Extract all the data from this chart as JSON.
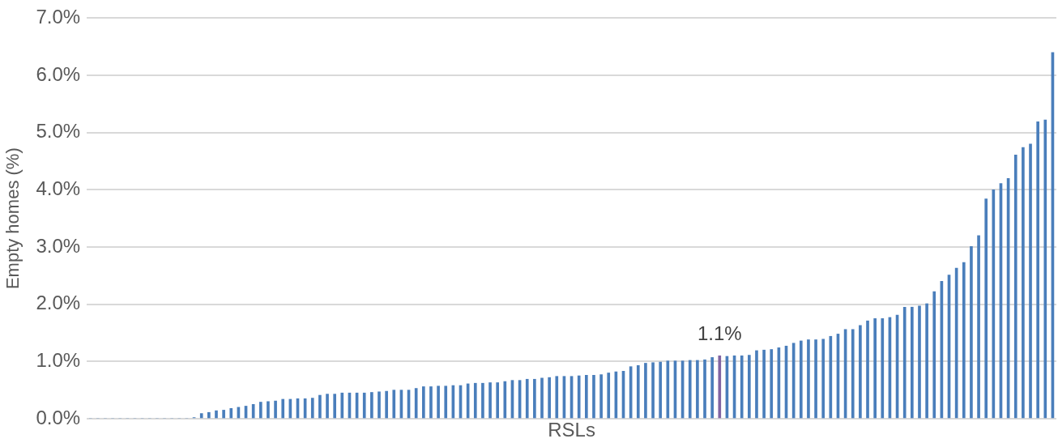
{
  "chart_data": {
    "type": "bar",
    "xlabel": "RSLs",
    "ylabel": "Empty homes (%)",
    "categories": [
      null,
      null,
      null,
      null,
      null,
      null,
      null,
      null,
      null,
      null,
      null,
      null,
      null,
      null,
      null,
      null,
      null,
      null,
      null,
      null,
      null,
      null,
      null,
      null,
      null,
      null,
      null,
      null,
      null,
      null,
      null,
      null,
      null,
      null,
      null,
      null,
      null,
      null,
      null,
      null,
      null,
      null,
      null,
      null,
      null,
      null,
      null,
      null,
      null,
      null,
      null,
      null,
      null,
      null,
      null,
      null,
      null,
      null,
      null,
      null,
      null,
      null,
      null,
      null,
      null,
      null,
      null,
      null,
      null,
      null,
      null,
      null,
      null,
      null,
      null,
      null,
      null,
      null,
      null,
      null,
      null,
      null,
      null,
      null,
      null,
      null,
      null,
      null,
      null,
      null,
      null,
      null,
      null,
      null,
      null,
      null,
      null,
      null,
      null,
      null,
      null,
      null,
      null,
      null,
      null,
      null,
      null,
      null,
      null,
      null,
      null,
      null,
      null,
      null,
      null,
      null,
      null,
      null,
      null,
      null,
      null,
      null,
      null,
      null,
      null,
      null,
      null,
      null,
      null,
      null,
      null
    ],
    "values": [
      0,
      0,
      0,
      0,
      0,
      0,
      0,
      0,
      0,
      0,
      0,
      0,
      0,
      0,
      0.02,
      0.09,
      0.11,
      0.14,
      0.15,
      0.18,
      0.2,
      0.22,
      0.25,
      0.29,
      0.3,
      0.31,
      0.34,
      0.34,
      0.35,
      0.35,
      0.36,
      0.41,
      0.43,
      0.43,
      0.45,
      0.45,
      0.45,
      0.45,
      0.46,
      0.47,
      0.48,
      0.5,
      0.5,
      0.5,
      0.53,
      0.56,
      0.56,
      0.57,
      0.57,
      0.58,
      0.58,
      0.61,
      0.62,
      0.62,
      0.63,
      0.63,
      0.65,
      0.67,
      0.67,
      0.69,
      0.69,
      0.71,
      0.72,
      0.74,
      0.74,
      0.74,
      0.75,
      0.76,
      0.76,
      0.77,
      0.8,
      0.82,
      0.83,
      0.91,
      0.93,
      0.97,
      0.98,
      0.99,
      1.01,
      1.01,
      1.01,
      1.02,
      1.02,
      1.03,
      1.07,
      1.1,
      1.09,
      1.1,
      1.1,
      1.11,
      1.19,
      1.2,
      1.21,
      1.24,
      1.27,
      1.32,
      1.36,
      1.38,
      1.38,
      1.39,
      1.44,
      1.48,
      1.56,
      1.56,
      1.63,
      1.71,
      1.75,
      1.75,
      1.77,
      1.81,
      1.95,
      1.95,
      1.97,
      2.01,
      2.22,
      2.4,
      2.51,
      2.63,
      2.73,
      3.01,
      3.2,
      3.84,
      4.0,
      4.11,
      4.2,
      4.61,
      4.74,
      4.8,
      5.19,
      5.22,
      6.4
    ],
    "colors": [
      "#4a7ebb",
      "#4a7ebb",
      "#4a7ebb",
      "#4a7ebb",
      "#4a7ebb",
      "#4a7ebb",
      "#4a7ebb",
      "#4a7ebb",
      "#4a7ebb",
      "#4a7ebb",
      "#4a7ebb",
      "#4a7ebb",
      "#4a7ebb",
      "#4a7ebb",
      "#4a7ebb",
      "#4a7ebb",
      "#4a7ebb",
      "#4a7ebb",
      "#4a7ebb",
      "#4a7ebb",
      "#4a7ebb",
      "#4a7ebb",
      "#4a7ebb",
      "#4a7ebb",
      "#4a7ebb",
      "#4a7ebb",
      "#4a7ebb",
      "#4a7ebb",
      "#4a7ebb",
      "#4a7ebb",
      "#4a7ebb",
      "#4a7ebb",
      "#4a7ebb",
      "#4a7ebb",
      "#4a7ebb",
      "#4a7ebb",
      "#4a7ebb",
      "#4a7ebb",
      "#4a7ebb",
      "#4a7ebb",
      "#4a7ebb",
      "#4a7ebb",
      "#4a7ebb",
      "#4a7ebb",
      "#4a7ebb",
      "#4a7ebb",
      "#4a7ebb",
      "#4a7ebb",
      "#4a7ebb",
      "#4a7ebb",
      "#4a7ebb",
      "#4a7ebb",
      "#4a7ebb",
      "#4a7ebb",
      "#4a7ebb",
      "#4a7ebb",
      "#4a7ebb",
      "#4a7ebb",
      "#4a7ebb",
      "#4a7ebb",
      "#4a7ebb",
      "#4a7ebb",
      "#4a7ebb",
      "#4a7ebb",
      "#4a7ebb",
      "#4a7ebb",
      "#4a7ebb",
      "#4a7ebb",
      "#4a7ebb",
      "#4a7ebb",
      "#4a7ebb",
      "#4a7ebb",
      "#4a7ebb",
      "#4a7ebb",
      "#4a7ebb",
      "#4a7ebb",
      "#4a7ebb",
      "#4a7ebb",
      "#4a7ebb",
      "#4a7ebb",
      "#4a7ebb",
      "#4a7ebb",
      "#4a7ebb",
      "#4a7ebb",
      "#4a7ebb",
      "#8064a2",
      "#4a7ebb",
      "#4a7ebb",
      "#4a7ebb",
      "#4a7ebb",
      "#4a7ebb",
      "#4a7ebb",
      "#4a7ebb",
      "#4a7ebb",
      "#4a7ebb",
      "#4a7ebb",
      "#4a7ebb",
      "#4a7ebb",
      "#4a7ebb",
      "#4a7ebb",
      "#4a7ebb",
      "#4a7ebb",
      "#4a7ebb",
      "#4a7ebb",
      "#4a7ebb",
      "#4a7ebb",
      "#4a7ebb",
      "#4a7ebb",
      "#4a7ebb",
      "#4a7ebb",
      "#4a7ebb",
      "#4a7ebb",
      "#4a7ebb",
      "#4a7ebb",
      "#4a7ebb",
      "#4a7ebb",
      "#4a7ebb",
      "#4a7ebb",
      "#4a7ebb",
      "#4a7ebb",
      "#4a7ebb",
      "#4a7ebb",
      "#4a7ebb",
      "#4a7ebb",
      "#4a7ebb",
      "#4a7ebb",
      "#4a7ebb",
      "#4a7ebb",
      "#4a7ebb",
      "#4a7ebb",
      "#4a7ebb"
    ],
    "value_labels": [
      null,
      null,
      null,
      null,
      null,
      null,
      null,
      null,
      null,
      null,
      null,
      null,
      null,
      null,
      null,
      null,
      null,
      null,
      null,
      null,
      null,
      null,
      null,
      null,
      null,
      null,
      null,
      null,
      null,
      null,
      null,
      null,
      null,
      null,
      null,
      null,
      null,
      null,
      null,
      null,
      null,
      null,
      null,
      null,
      null,
      null,
      null,
      null,
      null,
      null,
      null,
      null,
      null,
      null,
      null,
      null,
      null,
      null,
      null,
      null,
      null,
      null,
      null,
      null,
      null,
      null,
      null,
      null,
      null,
      null,
      null,
      null,
      null,
      null,
      null,
      null,
      null,
      null,
      null,
      null,
      null,
      null,
      null,
      null,
      null,
      "1.1%",
      null,
      null,
      null,
      null,
      null,
      null,
      null,
      null,
      null,
      null,
      null,
      null,
      null,
      null,
      null,
      null,
      null,
      null,
      null,
      null,
      null,
      null,
      null,
      null,
      null,
      null,
      null,
      null,
      null,
      null,
      null,
      null,
      null,
      null,
      null,
      null,
      null,
      null,
      null,
      null,
      null,
      null,
      null,
      null,
      null
    ],
    "ylim": [
      0,
      7
    ],
    "yticks": [
      {
        "value": 0,
        "label": "0.0%"
      },
      {
        "value": 1,
        "label": "1.0%"
      },
      {
        "value": 2,
        "label": "2.0%"
      },
      {
        "value": 3,
        "label": "3.0%"
      },
      {
        "value": 4,
        "label": "4.0%"
      },
      {
        "value": 5,
        "label": "5.0%"
      },
      {
        "value": 6,
        "label": "6.0%"
      },
      {
        "value": 7,
        "label": "7.0%"
      }
    ],
    "grid": "y"
  }
}
